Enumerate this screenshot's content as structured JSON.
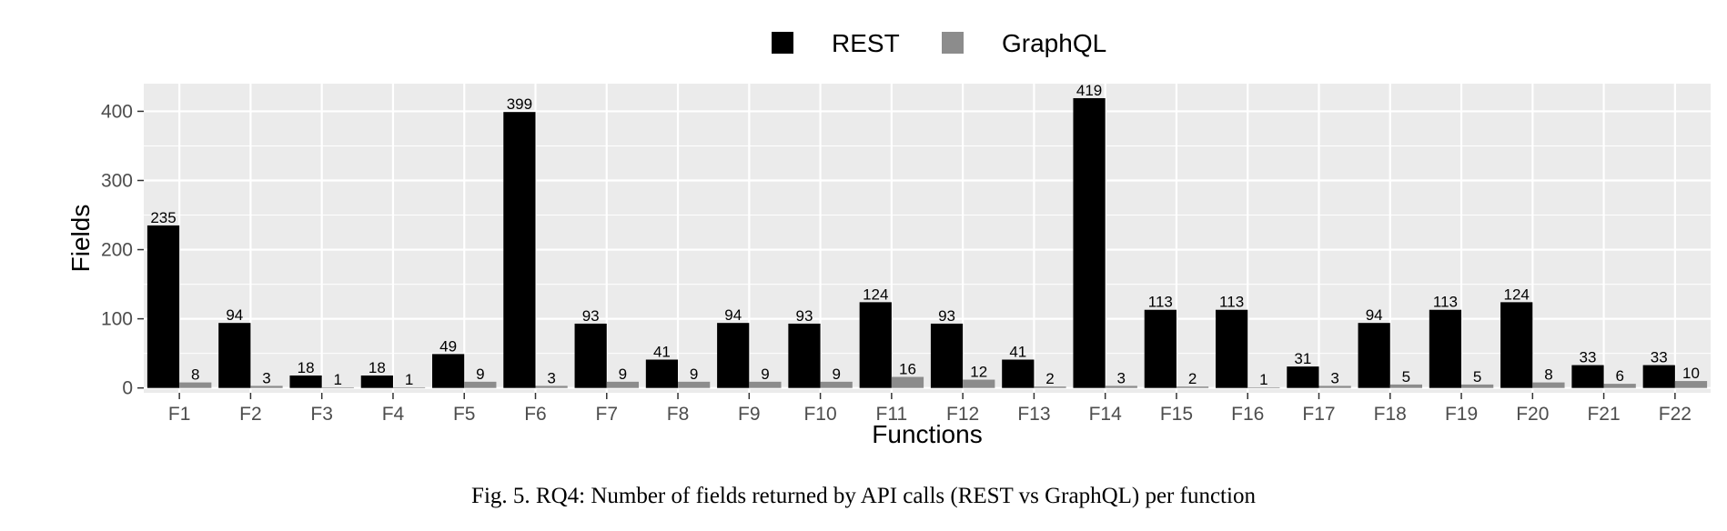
{
  "chart_data": {
    "type": "bar",
    "categories": [
      "F1",
      "F2",
      "F3",
      "F4",
      "F5",
      "F6",
      "F7",
      "F8",
      "F9",
      "F10",
      "F11",
      "F12",
      "F13",
      "F14",
      "F15",
      "F16",
      "F17",
      "F18",
      "F19",
      "F20",
      "F21",
      "F22"
    ],
    "series": [
      {
        "name": "REST",
        "color": "#000000",
        "values": [
          235,
          94,
          18,
          18,
          49,
          399,
          93,
          41,
          94,
          93,
          124,
          93,
          41,
          419,
          113,
          113,
          31,
          94,
          113,
          124,
          33,
          33
        ]
      },
      {
        "name": "GraphQL",
        "color": "#8c8c8c",
        "values": [
          8,
          3,
          1,
          1,
          9,
          3,
          9,
          9,
          9,
          9,
          16,
          12,
          2,
          3,
          2,
          1,
          3,
          5,
          5,
          8,
          6,
          10
        ]
      }
    ],
    "xlabel": "Functions",
    "ylabel": "Fields",
    "yticks": [
      0,
      100,
      200,
      300,
      400
    ],
    "ylim": [
      -7,
      440
    ],
    "legend_position": "top",
    "grid": true,
    "panel_background": "#ebebeb"
  },
  "caption": "Fig. 5.  RQ4: Number of fields returned by API calls (REST vs GraphQL) per function"
}
